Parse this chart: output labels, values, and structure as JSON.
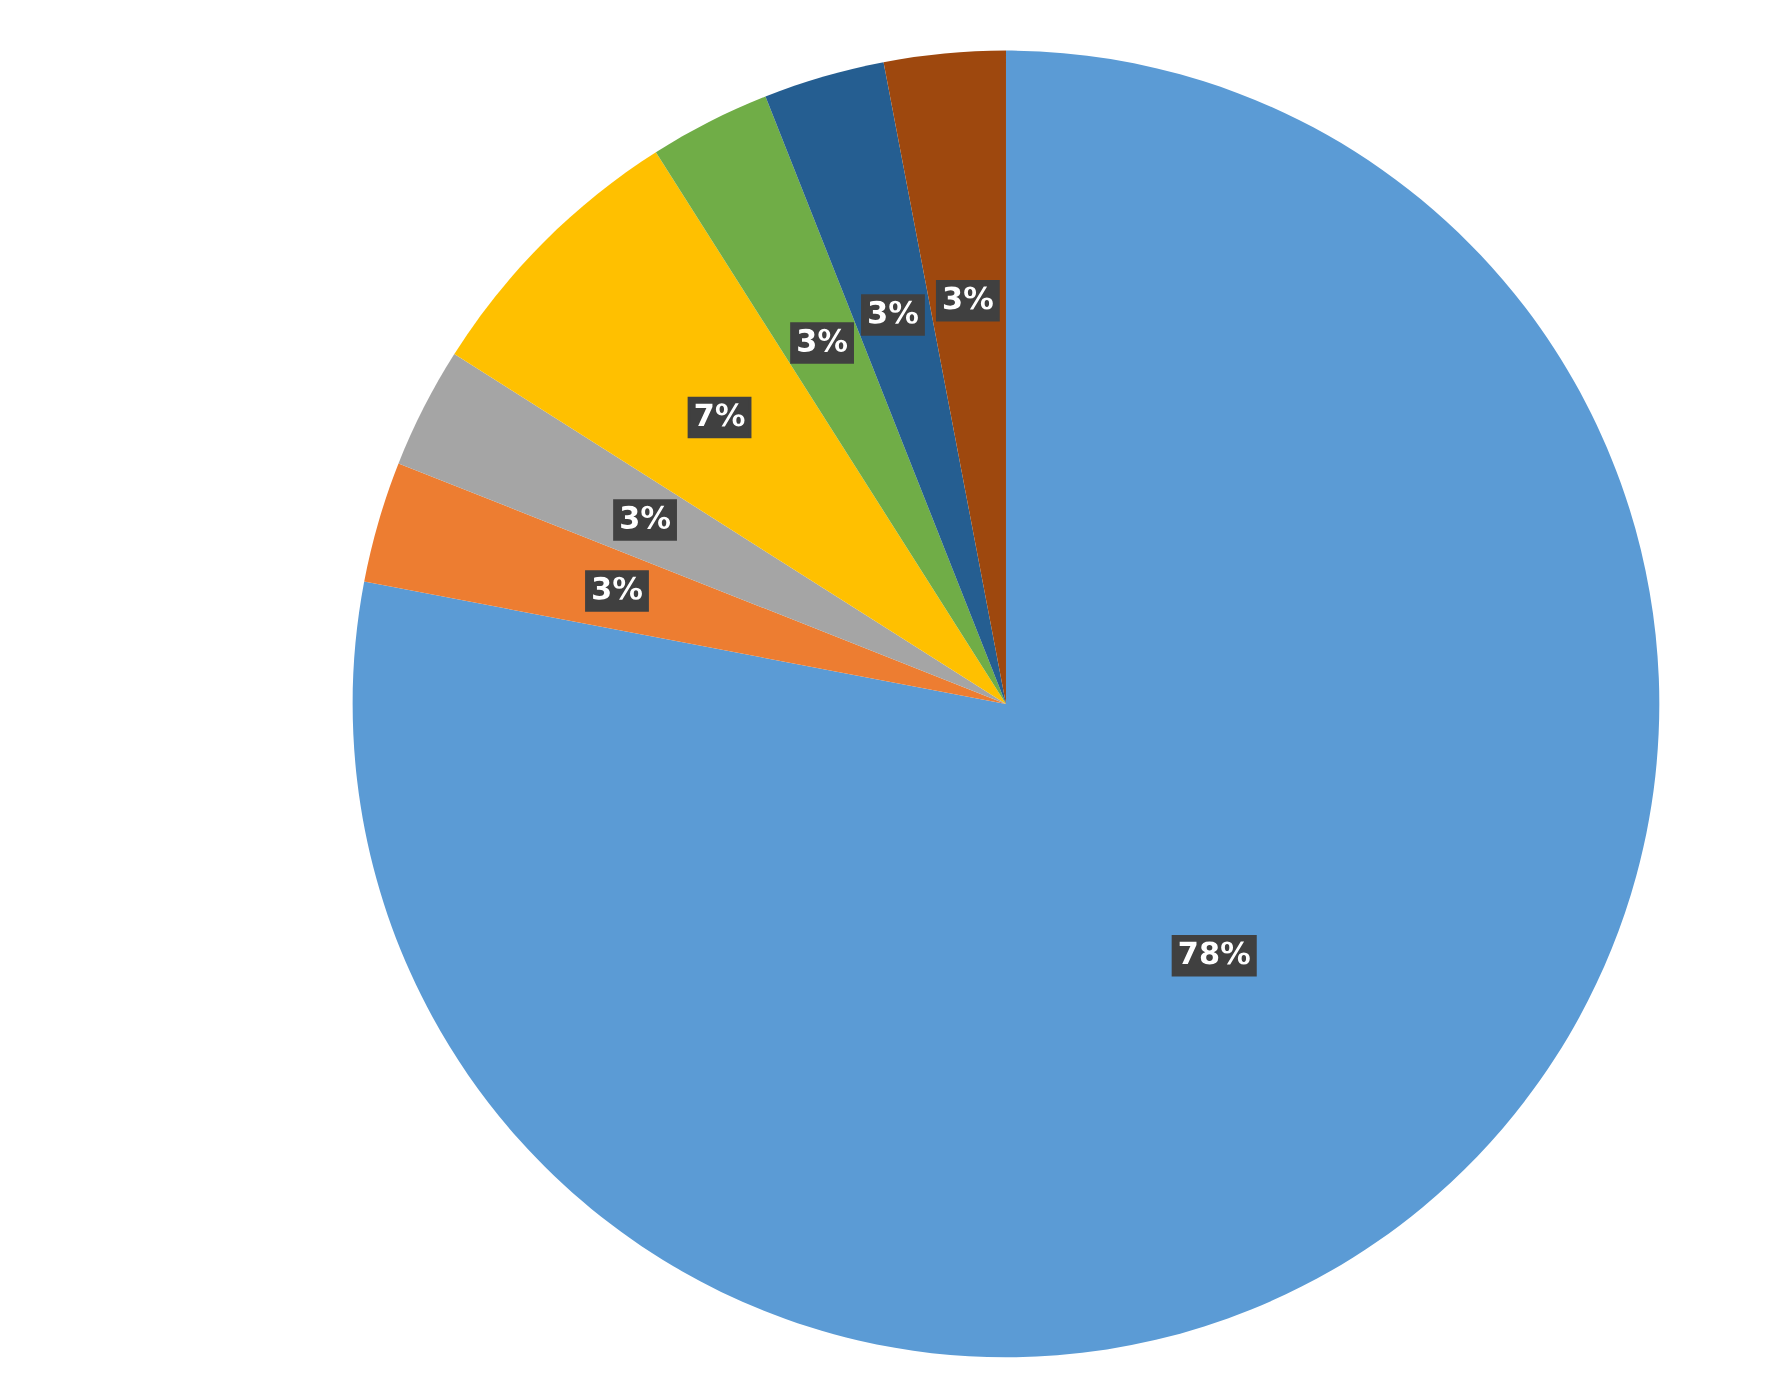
{
  "chart_data": {
    "type": "pie",
    "categories": [
      null,
      null,
      null,
      null,
      null,
      null,
      null
    ],
    "values": [
      78,
      3,
      3,
      7,
      3,
      3,
      3
    ],
    "colors": [
      "#5b9bd5",
      "#ed7d31",
      "#a5a5a5",
      "#ffc000",
      "#70ad47",
      "#255e91",
      "#9e480e"
    ],
    "value_labels": [
      "78%",
      "3%",
      "3%",
      "7%",
      "3%",
      "3%",
      "3%"
    ]
  }
}
